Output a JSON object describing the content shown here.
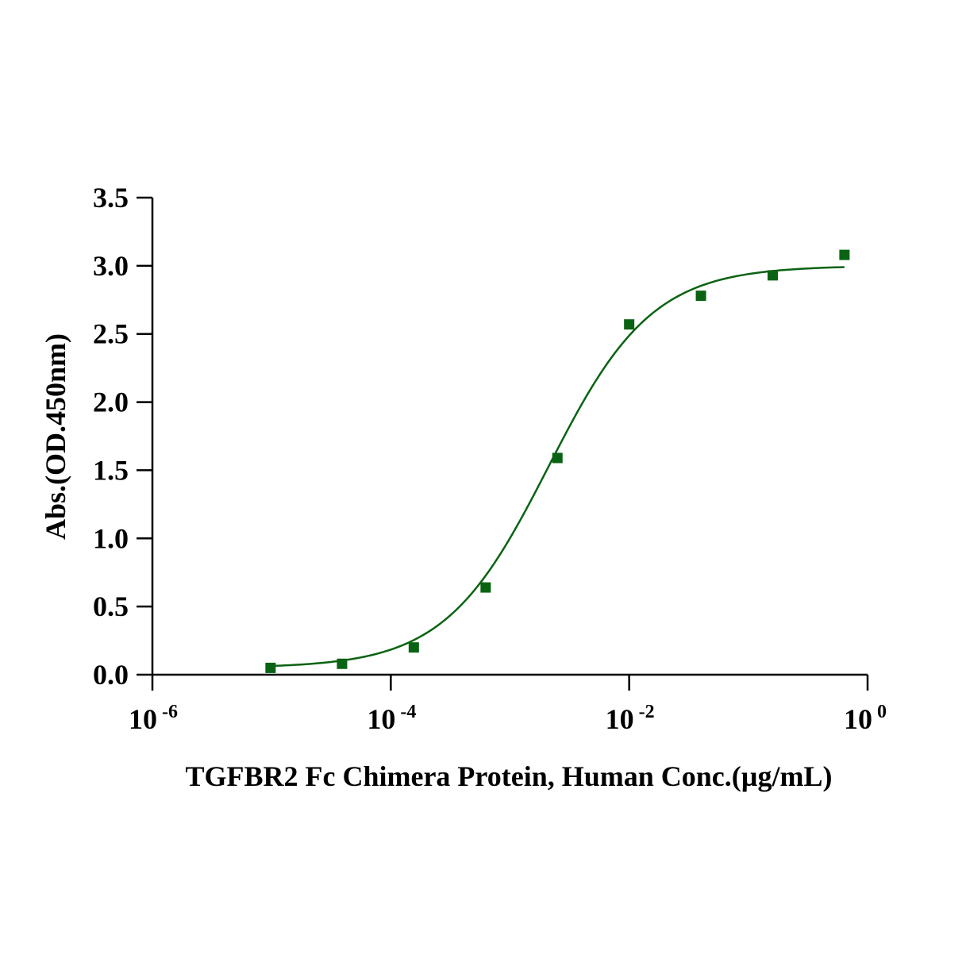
{
  "chart_data": {
    "type": "scatter",
    "title": "",
    "xlabel": "TGFBR2 Fc Chimera Protein, Human Conc.(µg/mL)",
    "ylabel": "Abs.(OD.450nm)",
    "x_scale": "log",
    "xlim": [
      1e-06,
      1
    ],
    "ylim": [
      0,
      3.5
    ],
    "x_ticks": [
      {
        "base": "10",
        "exp": "-6"
      },
      {
        "base": "10",
        "exp": "-4"
      },
      {
        "base": "10",
        "exp": "-2"
      },
      {
        "base": "10",
        "exp": "0"
      }
    ],
    "x_tick_values": [
      1e-06,
      0.0001,
      0.01,
      1
    ],
    "y_ticks": [
      "0.0",
      "0.5",
      "1.0",
      "1.5",
      "2.0",
      "2.5",
      "3.0",
      "3.5"
    ],
    "y_tick_values": [
      0,
      0.5,
      1.0,
      1.5,
      2.0,
      2.5,
      3.0,
      3.5
    ],
    "series": [
      {
        "x": [
          9.8e-06,
          3.9e-05,
          0.000156,
          0.000625,
          0.0025,
          0.01,
          0.04,
          0.16,
          0.64
        ],
        "y": [
          0.05,
          0.08,
          0.2,
          0.64,
          1.59,
          2.57,
          2.78,
          2.93,
          3.08
        ],
        "marker": "square",
        "fit": {
          "bottom": 0.05,
          "top": 3.0,
          "ec50": 0.0021,
          "hill": 1.0
        }
      }
    ],
    "color": "#0a6312",
    "grid": false,
    "legend": "none"
  }
}
